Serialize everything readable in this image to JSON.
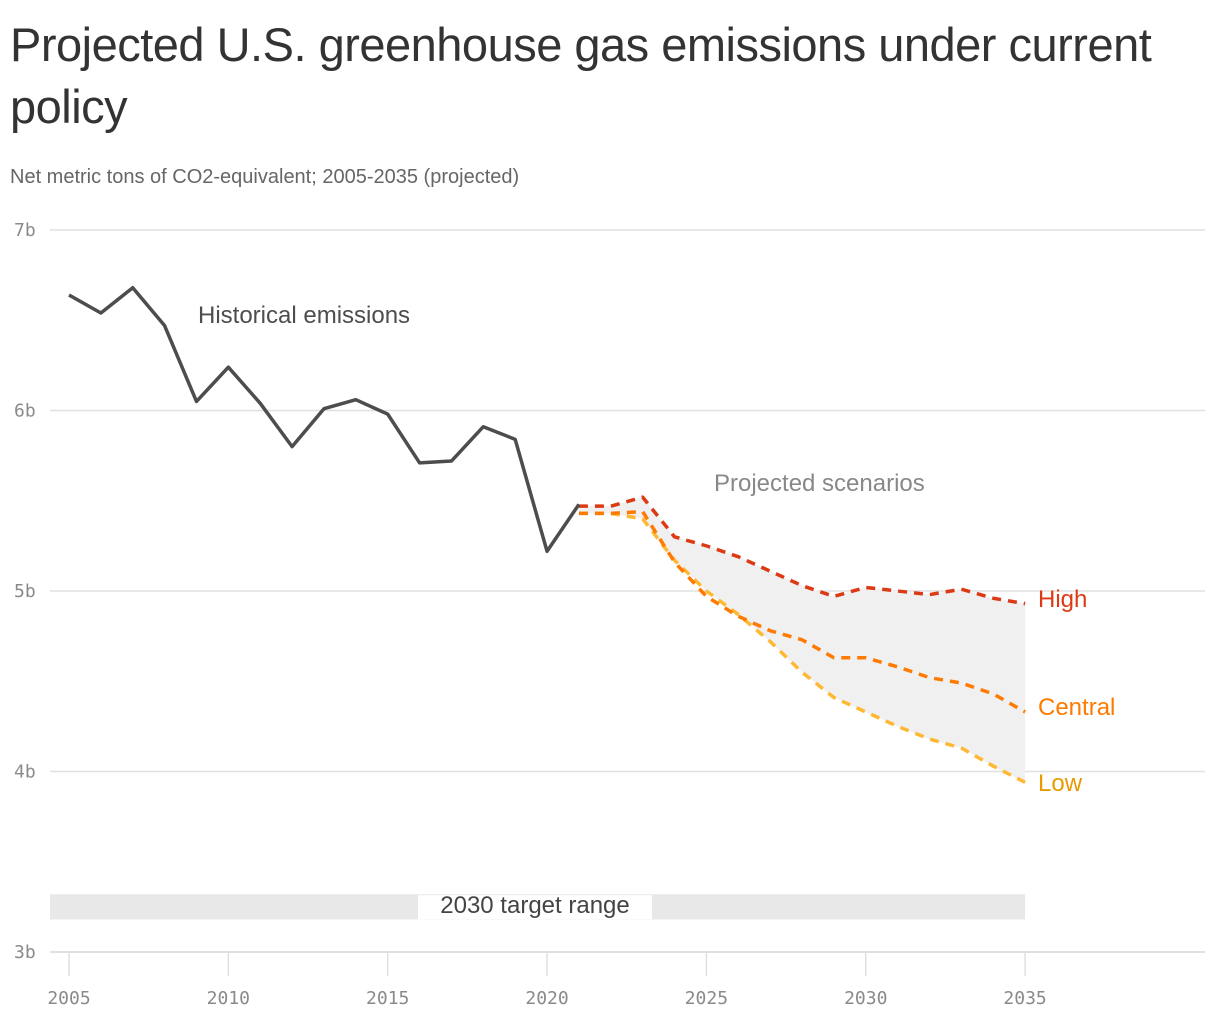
{
  "title": "Projected U.S. greenhouse gas emissions under current policy",
  "subtitle": "Net metric tons of CO2-equivalent; 2005-2035 (projected)",
  "chart_data": {
    "type": "line",
    "title": "Projected U.S. greenhouse gas emissions under current policy",
    "subtitle": "Net metric tons of CO2-equivalent; 2005-2035 (projected)",
    "xlim": [
      2005,
      2035
    ],
    "ylim": [
      3,
      7
    ],
    "x_ticks": [
      "2005",
      "2010",
      "2015",
      "2020",
      "2025",
      "2030",
      "2035"
    ],
    "y_ticks": [
      {
        "v": 3,
        "label": "3b"
      },
      {
        "v": 4,
        "label": "4b"
      },
      {
        "v": 5,
        "label": "5b"
      },
      {
        "v": 6,
        "label": "6b"
      },
      {
        "v": 7,
        "label": "7b"
      }
    ],
    "grid": true,
    "annotations": {
      "historical": "Historical emissions",
      "projected": "Projected scenarios",
      "target": "2030 target range"
    },
    "target_range": [
      3.18,
      3.32
    ],
    "series": [
      {
        "name": "Historical emissions",
        "color": "#4d4d4d",
        "dashed": false,
        "x": [
          2005,
          2006,
          2007,
          2008,
          2009,
          2010,
          2011,
          2012,
          2013,
          2014,
          2015,
          2016,
          2017,
          2018,
          2019,
          2020,
          2021
        ],
        "values": [
          6.64,
          6.54,
          6.68,
          6.47,
          6.05,
          6.24,
          6.04,
          5.8,
          6.01,
          6.06,
          5.98,
          5.71,
          5.72,
          5.91,
          5.84,
          5.22,
          5.48
        ]
      },
      {
        "name": "High",
        "color": "#dc3a14",
        "dashed": true,
        "x": [
          2021,
          2022,
          2023,
          2024,
          2025,
          2026,
          2027,
          2028,
          2029,
          2030,
          2031,
          2032,
          2033,
          2034,
          2035
        ],
        "values": [
          5.47,
          5.47,
          5.52,
          5.3,
          5.25,
          5.19,
          5.11,
          5.03,
          4.97,
          5.02,
          5.0,
          4.98,
          5.01,
          4.96,
          4.93
        ]
      },
      {
        "name": "Central",
        "color": "#ff7a00",
        "dashed": true,
        "x": [
          2021,
          2022,
          2023,
          2024,
          2025,
          2026,
          2027,
          2028,
          2029,
          2030,
          2031,
          2032,
          2033,
          2034,
          2035
        ],
        "values": [
          5.43,
          5.43,
          5.44,
          5.16,
          4.97,
          4.86,
          4.78,
          4.73,
          4.63,
          4.63,
          4.58,
          4.52,
          4.49,
          4.43,
          4.33
        ]
      },
      {
        "name": "Low",
        "color": "#ffb833",
        "dashed": true,
        "x": [
          2021,
          2022,
          2023,
          2024,
          2025,
          2026,
          2027,
          2028,
          2029,
          2030,
          2031,
          2032,
          2033,
          2034,
          2035
        ],
        "values": [
          5.43,
          5.43,
          5.4,
          5.17,
          5.0,
          4.87,
          4.72,
          4.55,
          4.41,
          4.33,
          4.25,
          4.18,
          4.13,
          4.03,
          3.94
        ]
      }
    ],
    "label_colors": {
      "High": "#dc3a14",
      "Central": "#ff7a00",
      "Low": "#e89a00"
    }
  }
}
